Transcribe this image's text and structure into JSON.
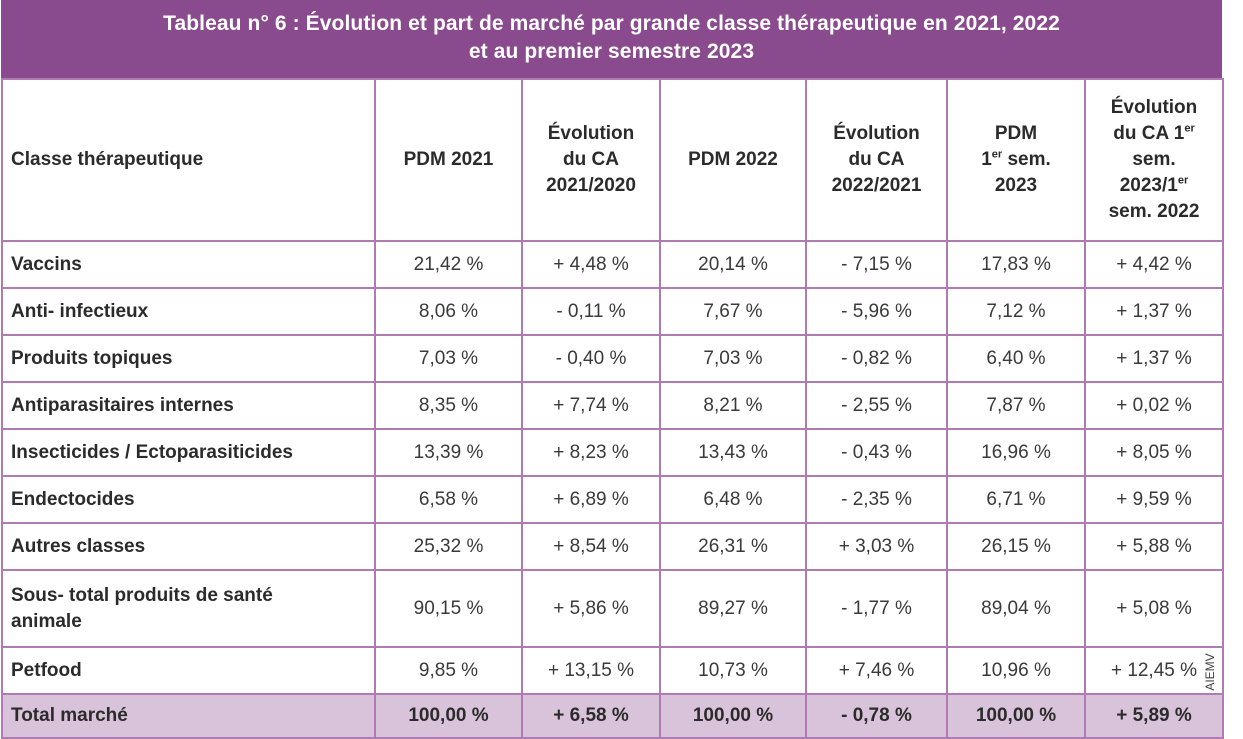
{
  "title": {
    "line1": "Tableau n° 6 : Évolution et part de marché par grande classe thérapeutique en 2021, 2022",
    "line2": "et au premier semestre 2023"
  },
  "headers": {
    "col0": "Classe thérapeutique",
    "col1": "PDM 2021",
    "col2_l1": "Évolution",
    "col2_l2": "du CA",
    "col2_l3": "2021/2020",
    "col3": "PDM 2022",
    "col4_l1": "Évolution",
    "col4_l2": "du CA",
    "col4_l3": "2022/2021",
    "col5_l1": "PDM",
    "col5_l2a": "1",
    "col5_l2sup": "er",
    "col5_l2b": " sem.",
    "col5_l3": "2023",
    "col6_l1": "Évolution",
    "col6_l2a": "du CA 1",
    "col6_l2sup": "er",
    "col6_l3": "sem.",
    "col6_l4a": "2023/1",
    "col6_l4sup": "er",
    "col6_l5": "sem.  2022"
  },
  "rows": [
    {
      "label": "Vaccins",
      "c1": "21,42  %",
      "c2": "+ 4,48  %",
      "c3": "20,14  %",
      "c4": "- 7,15  %",
      "c5": "17,83  %",
      "c6": "+ 4,42  %"
    },
    {
      "label": "Anti- infectieux",
      "c1": "8,06  %",
      "c2": "- 0,11  %",
      "c3": "7,67  %",
      "c4": "- 5,96  %",
      "c5": "7,12  %",
      "c6": "+ 1,37  %"
    },
    {
      "label": "Produits topiques",
      "c1": "7,03  %",
      "c2": "- 0,40  %",
      "c3": "7,03  %",
      "c4": "- 0,82  %",
      "c5": "6,40  %",
      "c6": "+ 1,37  %"
    },
    {
      "label": "Antiparasitaires internes",
      "c1": "8,35  %",
      "c2": "+ 7,74  %",
      "c3": "8,21  %",
      "c4": "- 2,55  %",
      "c5": "7,87  %",
      "c6": "+ 0,02  %"
    },
    {
      "label": "Insecticides / Ectoparasiticides",
      "c1": "13,39  %",
      "c2": "+ 8,23  %",
      "c3": "13,43  %",
      "c4": "- 0,43  %",
      "c5": "16,96  %",
      "c6": "+ 8,05  %"
    },
    {
      "label": "Endectocides",
      "c1": "6,58  %",
      "c2": "+ 6,89  %",
      "c3": "6,48  %",
      "c4": "- 2,35  %",
      "c5": "6,71  %",
      "c6": "+ 9,59  %"
    },
    {
      "label": "Autres classes",
      "c1": "25,32  %",
      "c2": "+ 8,54  %",
      "c3": "26,31  %",
      "c4": "+ 3,03  %",
      "c5": "26,15  %",
      "c6": "+ 5,88  %"
    },
    {
      "label_l1": "Sous- total produits de santé",
      "label_l2": "animale",
      "c1": "90,15  %",
      "c2": "+ 5,86  %",
      "c3": "89,27  %",
      "c4": "- 1,77  %",
      "c5": "89,04  %",
      "c6": "+ 5,08  %"
    },
    {
      "label": "Petfood",
      "c1": "9,85  %",
      "c2": "+ 13,15  %",
      "c3": "10,73  %",
      "c4": "+ 7,46  %",
      "c5": "10,96  %",
      "c6": "+ 12,45  %"
    }
  ],
  "total": {
    "label": "Total marché",
    "c1": "100,00  %",
    "c2": "+ 6,58  %",
    "c3": "100,00  %",
    "c4": "- 0,78  %",
    "c5": "100,00  %",
    "c6": "+ 5,89  %"
  },
  "credit": "AIEMV"
}
